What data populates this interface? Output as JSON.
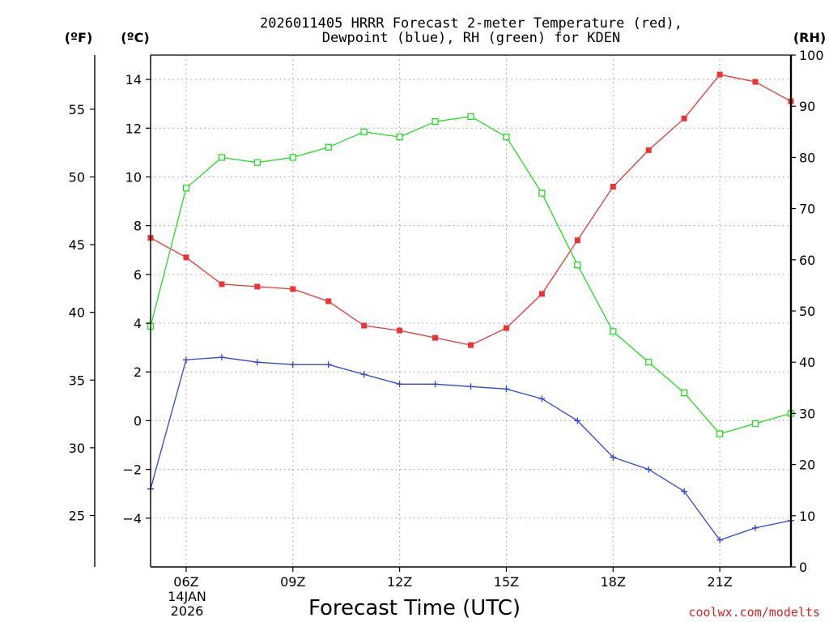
{
  "chart_data": {
    "type": "line",
    "title": [
      "2026011405 HRRR Forecast 2-meter Temperature (red),",
      "Dewpoint (blue), RH (green) for KDEN"
    ],
    "xlabel": "Forecast Time (UTC)",
    "x": [
      5,
      6,
      7,
      8,
      9,
      10,
      11,
      12,
      13,
      14,
      15,
      16,
      17,
      18,
      19,
      20,
      21,
      22,
      23
    ],
    "xlim": [
      5,
      23
    ],
    "x_tick_values": [
      6,
      9,
      12,
      15,
      18,
      21
    ],
    "x_tick_labels": [
      "06Z",
      "09Z",
      "12Z",
      "15Z",
      "18Z",
      "21Z"
    ],
    "date_label": [
      "14JAN",
      "2026"
    ],
    "left_axis_c": {
      "unit": "(ºC)",
      "ylim": [
        -6,
        15
      ],
      "ticks": [
        -4,
        -2,
        0,
        2,
        4,
        6,
        8,
        10,
        12,
        14
      ],
      "tick_labels": [
        "−4",
        "−2",
        "0",
        "2",
        "4",
        "6",
        "8",
        "10",
        "12",
        "14"
      ]
    },
    "left_axis_f": {
      "unit": "(ºF)",
      "ticks": [
        25,
        30,
        35,
        40,
        45,
        50,
        55
      ],
      "tick_labels": [
        "25",
        "30",
        "35",
        "40",
        "45",
        "50",
        "55"
      ]
    },
    "right_axis_rh": {
      "unit": "(RH)",
      "ylim": [
        0,
        100
      ],
      "ticks": [
        0,
        10,
        20,
        30,
        40,
        50,
        60,
        70,
        80,
        90,
        100
      ],
      "tick_labels": [
        "0",
        "10",
        "20",
        "30",
        "40",
        "50",
        "60",
        "70",
        "80",
        "90",
        "100"
      ]
    },
    "series": [
      {
        "name": "Temperature",
        "axis": "C",
        "color": "#ee3333",
        "marker": "filled-square",
        "values": [
          7.5,
          6.7,
          5.6,
          5.5,
          5.4,
          4.9,
          3.9,
          3.7,
          3.4,
          3.1,
          3.8,
          5.2,
          7.4,
          9.6,
          11.1,
          12.4,
          14.2,
          13.9,
          13.1
        ]
      },
      {
        "name": "Dewpoint",
        "axis": "C",
        "color": "#3344dd",
        "marker": "plus",
        "values": [
          -2.8,
          2.5,
          2.6,
          2.4,
          2.3,
          2.3,
          1.9,
          1.5,
          1.5,
          1.4,
          1.3,
          0.9,
          0.0,
          -1.5,
          -2.0,
          -2.9,
          -4.9,
          -4.4,
          -4.1
        ]
      },
      {
        "name": "RH",
        "axis": "RH",
        "color": "#22dd22",
        "marker": "open-square",
        "values": [
          47,
          74,
          80,
          79,
          80,
          82,
          85,
          84,
          87,
          88,
          84,
          73,
          59,
          46,
          40,
          34,
          26,
          28,
          30
        ]
      }
    ]
  },
  "credit": "coolwx.com/modelts"
}
